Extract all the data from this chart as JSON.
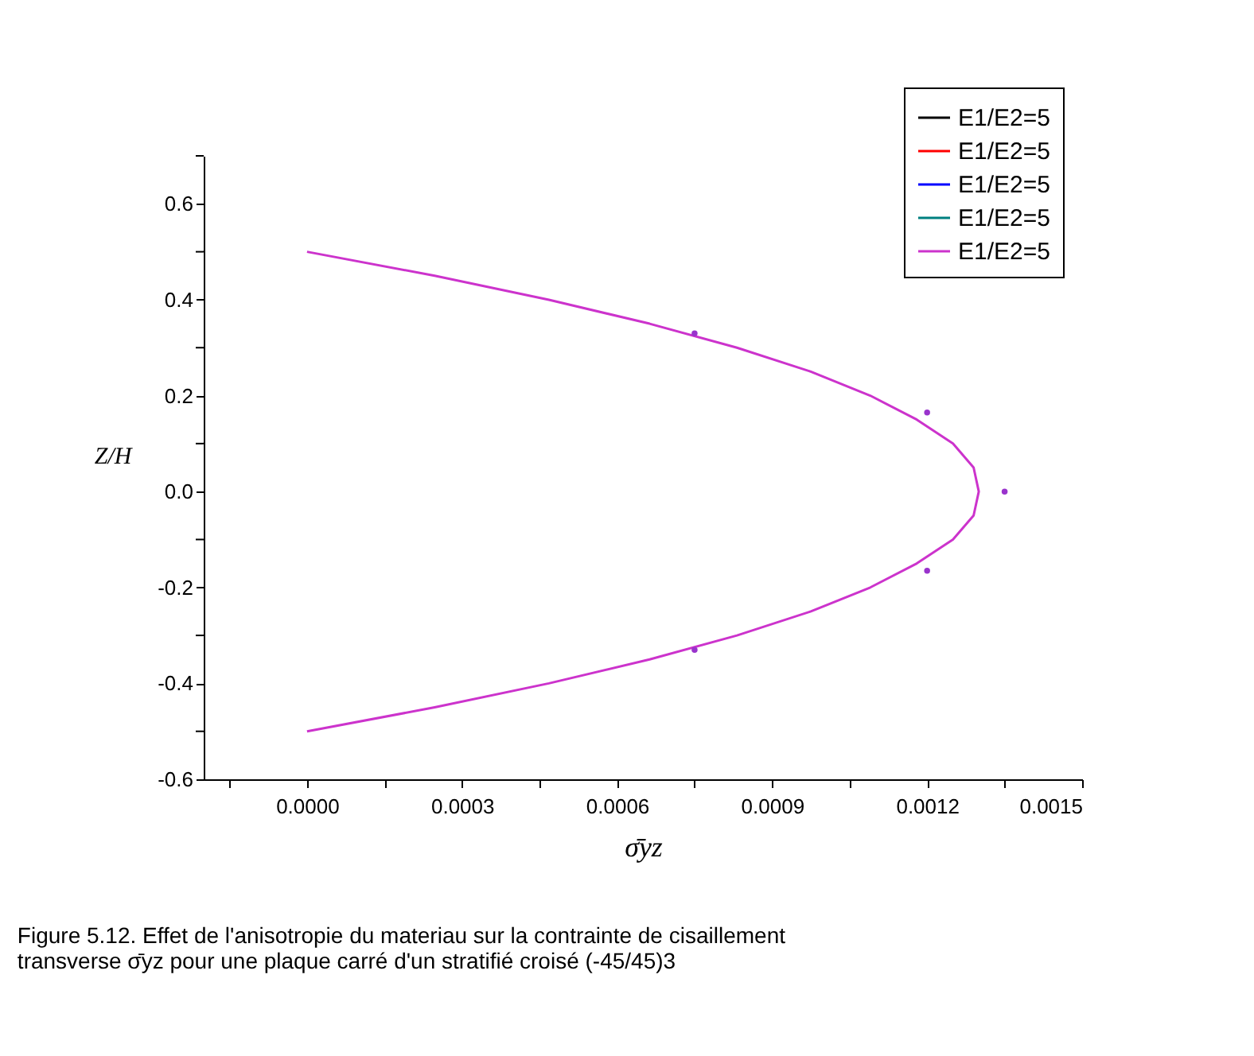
{
  "chart_data": {
    "type": "line",
    "xlabel": "σ̄yz",
    "ylabel": "Z/H",
    "annotations": [
      "Figure 5.12. Effet de l'anisotropie du materiau sur la contrainte de cisaillement",
      "transverse   σ̄yz    pour une plaque carré d'un stratifié croisé (-45/45)3"
    ],
    "xlim": [
      -0.0002,
      0.0015
    ],
    "xticks": [
      {
        "value": -0.00015,
        "label": null
      },
      {
        "value": 0,
        "label": "0.0000"
      },
      {
        "value": 0.00015,
        "label": null
      },
      {
        "value": 0.0003,
        "label": "0.0003"
      },
      {
        "value": 0.00045,
        "label": null
      },
      {
        "value": 0.0006,
        "label": "0.0006"
      },
      {
        "value": 0.00075,
        "label": null
      },
      {
        "value": 0.0009,
        "label": "0.0009"
      },
      {
        "value": 0.00105,
        "label": null
      },
      {
        "value": 0.0012,
        "label": "0.0012"
      },
      {
        "value": 0.00135,
        "label": null
      },
      {
        "value": 0.0015,
        "label": "0.0015"
      }
    ],
    "ylim": [
      -0.6,
      0.7
    ],
    "yticks": [
      -0.6,
      {
        "value": -0.5,
        "label": null
      },
      -0.4,
      {
        "value": -0.3,
        "label": null
      },
      -0.2,
      {
        "value": -0.1,
        "label": null
      },
      {
        "value": 0,
        "label": "0.0"
      },
      {
        "value": 0.1,
        "label": null
      },
      0.2,
      {
        "value": 0.3,
        "label": null
      },
      0.4,
      {
        "value": 0.5,
        "label": null
      },
      0.6,
      {
        "value": 0.7,
        "label": null
      }
    ],
    "grid": false,
    "legend": "top right",
    "series": [
      {
        "name": "E1/E2=5",
        "color": "#000000",
        "values": [
          null
        ]
      },
      {
        "name": "E1/E2=5",
        "color": "#ff0000",
        "values": [
          null
        ]
      },
      {
        "name": "E1/E2=5",
        "color": "#0000ff",
        "values": [
          null
        ]
      },
      {
        "name": "E1/E2=5",
        "color": "#008080",
        "values": [
          null
        ]
      },
      {
        "name": "E1/E2=5",
        "color": "#cc33cc",
        "x": [
          0,
          0.000247,
          0.000468,
          0.000663,
          0.000832,
          0.000975,
          0.00109,
          0.00118,
          0.00125,
          0.00129,
          0.0013,
          0.00129,
          0.00125,
          0.00118,
          0.00109,
          0.000975,
          0.000832,
          0.000663,
          0.000468,
          0.000247,
          0
        ],
        "values": [
          0.5,
          0.45,
          0.4,
          0.35,
          0.3,
          0.25,
          0.2,
          0.15,
          0.1,
          0.05,
          0,
          -0.05,
          -0.1,
          -0.15,
          -0.2,
          -0.25,
          -0.3,
          -0.35,
          -0.4,
          -0.45,
          -0.5
        ]
      },
      {
        "type": "scatter",
        "color": "#9933cc",
        "x": [
          0.00075,
          0.0012,
          0.00135,
          0.0012,
          0.00075
        ],
        "values": [
          0.33,
          0.165,
          0,
          -0.165,
          -0.33
        ]
      }
    ]
  }
}
